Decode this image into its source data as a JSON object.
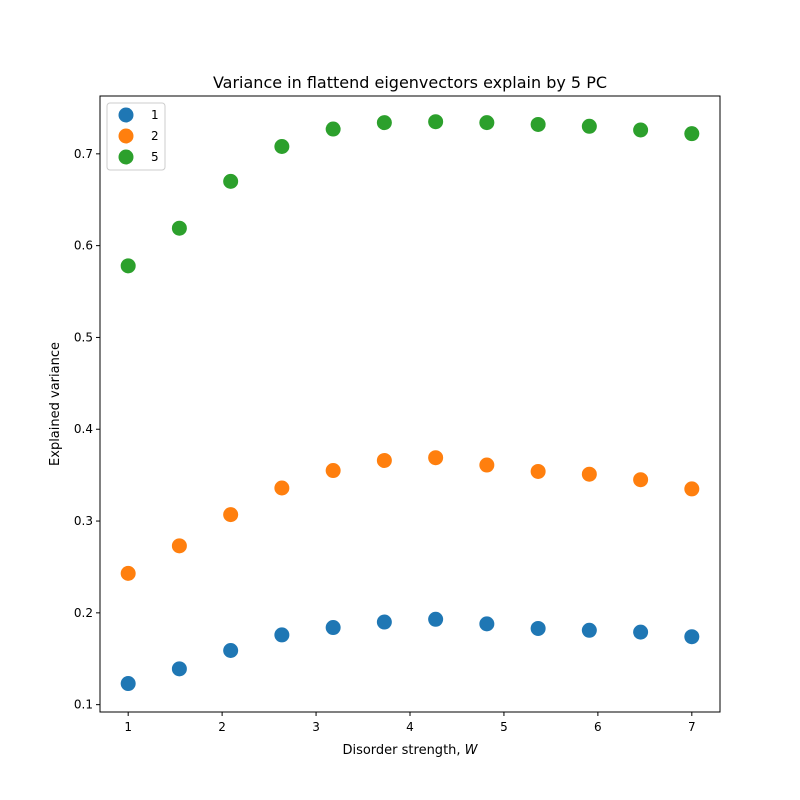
{
  "chart_data": {
    "type": "scatter",
    "title": "Variance in flattend eigenvectors explain by 5 PC",
    "xlabel": "Disorder strength, ",
    "xlabel_var": "W",
    "ylabel": "Explained variance",
    "xlim": [
      0.7,
      7.3
    ],
    "ylim": [
      0.092,
      0.763
    ],
    "xticks": [
      1,
      2,
      3,
      4,
      5,
      6,
      7
    ],
    "yticks": [
      0.1,
      0.2,
      0.3,
      0.4,
      0.5,
      0.6,
      0.7
    ],
    "ytick_labels": [
      "0.1",
      "0.2",
      "0.3",
      "0.4",
      "0.5",
      "0.6",
      "0.7"
    ],
    "legend_position": "top-left",
    "grid": false,
    "x": [
      1.0,
      1.545,
      2.091,
      2.636,
      3.182,
      3.727,
      4.273,
      4.818,
      5.364,
      5.909,
      6.455,
      7.0
    ],
    "series": [
      {
        "name": "1",
        "color": "#1f77b4",
        "values": [
          0.123,
          0.139,
          0.159,
          0.176,
          0.184,
          0.19,
          0.193,
          0.188,
          0.183,
          0.181,
          0.179,
          0.174
        ]
      },
      {
        "name": "2",
        "color": "#ff7f0e",
        "values": [
          0.243,
          0.273,
          0.307,
          0.336,
          0.355,
          0.366,
          0.369,
          0.361,
          0.354,
          0.351,
          0.345,
          0.335
        ]
      },
      {
        "name": "5",
        "color": "#2ca02c",
        "values": [
          0.578,
          0.619,
          0.67,
          0.708,
          0.727,
          0.734,
          0.735,
          0.734,
          0.732,
          0.73,
          0.726,
          0.722
        ]
      }
    ]
  }
}
